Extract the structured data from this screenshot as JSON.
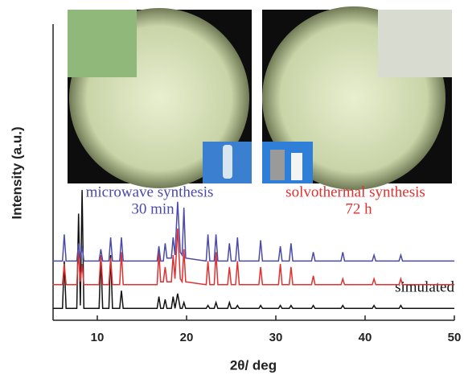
{
  "chart_data": {
    "type": "line",
    "xlabel": "2θ/ deg",
    "ylabel": "Intensity (a.u.)",
    "xlim": [
      5,
      50
    ],
    "xticks": [
      10,
      20,
      30,
      40,
      50
    ],
    "ylim": [
      0,
      100
    ],
    "x": [
      5,
      6.1,
      6.3,
      6.5,
      7.7,
      7.9,
      8.1,
      8.3,
      8.5,
      10.2,
      10.4,
      10.6,
      11.3,
      11.5,
      11.7,
      12.5,
      12.7,
      12.9,
      16.7,
      16.9,
      17.1,
      17.4,
      17.6,
      17.8,
      18.3,
      18.5,
      18.7,
      19.0,
      19.3,
      19.5,
      19.7,
      19.9,
      22.2,
      22.4,
      22.6,
      23.1,
      23.3,
      23.5,
      24.6,
      24.8,
      25.0,
      25.5,
      25.7,
      25.9,
      28.1,
      28.3,
      28.5,
      30.3,
      30.5,
      30.7,
      31.5,
      31.7,
      31.9,
      34.0,
      34.2,
      34.4,
      37.3,
      37.5,
      37.7,
      40.8,
      41.0,
      41.2,
      43.8,
      44.0,
      44.2,
      50
    ],
    "series": [
      {
        "name": "simulated",
        "color": "#111111",
        "values": [
          4,
          4,
          20,
          4,
          4,
          36,
          5,
          44,
          4,
          4,
          21,
          4,
          4,
          22,
          4,
          4,
          10,
          4,
          4,
          8,
          4,
          4,
          7,
          4,
          4,
          8,
          4,
          9,
          4,
          4,
          6,
          4,
          4,
          5,
          4,
          4,
          6,
          4,
          4,
          6,
          4,
          4,
          5,
          4,
          4,
          5,
          4,
          4,
          5,
          4,
          4,
          5,
          4,
          4,
          5,
          4,
          4,
          5,
          4,
          4,
          5,
          4,
          4,
          5,
          4,
          4
        ]
      },
      {
        "name": "solvothermal synthesis",
        "color": "#e03030",
        "values": [
          12,
          12,
          19,
          12,
          12,
          23,
          13,
          19,
          12,
          12,
          22,
          12,
          12,
          21,
          12,
          12,
          23,
          12,
          12,
          23,
          13,
          13,
          18,
          13,
          13,
          22,
          14,
          31,
          14,
          13,
          24,
          13,
          12,
          20,
          12,
          12,
          23,
          12,
          12,
          18,
          12,
          12,
          20,
          12,
          12,
          18,
          12,
          12,
          19,
          12,
          12,
          18,
          12,
          12,
          15,
          12,
          12,
          14,
          12,
          12,
          14,
          12,
          12,
          14,
          12,
          12
        ]
      },
      {
        "name": "microwave synthesis",
        "color": "#4a4aa8",
        "values": [
          20,
          20,
          29,
          20,
          20,
          26,
          21,
          25,
          20,
          20,
          24,
          20,
          20,
          28,
          20,
          20,
          28,
          20,
          20,
          25,
          20,
          20,
          26,
          21,
          21,
          28,
          22,
          40,
          23,
          22,
          38,
          21,
          20,
          29,
          20,
          20,
          29,
          20,
          20,
          26,
          20,
          20,
          28,
          20,
          20,
          27,
          20,
          20,
          25,
          20,
          20,
          26,
          20,
          20,
          23,
          20,
          20,
          23,
          20,
          20,
          22,
          20,
          20,
          22,
          20,
          20
        ]
      }
    ],
    "annotations": [
      {
        "text": "microwave synthesis",
        "color": "#4a4aa8"
      },
      {
        "text": "30 min",
        "color": "#4a4aa8"
      },
      {
        "text": "solvothermal synthesis",
        "color": "#e03030"
      },
      {
        "text": "72 h",
        "color": "#e03030"
      },
      {
        "text": "simulated",
        "color": "#111111"
      }
    ]
  }
}
